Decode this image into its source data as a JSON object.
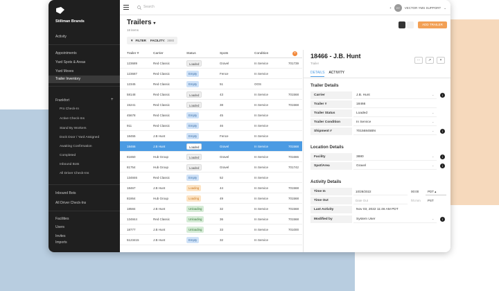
{
  "sidebar": {
    "brand": "Stillman Brands",
    "items": [
      {
        "label": "Activity",
        "top": 0
      },
      {
        "label": "Appointments"
      },
      {
        "label": "Yard Spots & Areas"
      },
      {
        "label": "Yard Moves"
      },
      {
        "label": "Trailer Inventory"
      }
    ],
    "section": "Frankfort",
    "subitems": [
      "Pro Check-In",
      "Active Check-Ins",
      "Stand By Workers",
      "Dock Door / Yard Assigned",
      "Awaiting Confirmation",
      "Completed",
      "Inbound Bots",
      "All Driver Check-Ins"
    ],
    "bottom": [
      "Inbound Bots",
      "All Driver Check-Ins",
      "Facilities",
      "Users",
      "Invites",
      "Imports"
    ]
  },
  "topbar": {
    "search_placeholder": "Search",
    "avatar": "VY",
    "user": "VECTOR YMS SUPPORT"
  },
  "page": {
    "title": "Trailers",
    "subtitle": "18 items",
    "filter_label": "FILTER",
    "facility_label": "FACILITY:",
    "facility_value": "3880",
    "add_button": "ADD TRAILER"
  },
  "table": {
    "headers": [
      "Trailer #",
      "Carrier",
      "Status",
      "Spots",
      "Condition"
    ],
    "rows": [
      {
        "trailer": "123689",
        "carrier": "Red Classic",
        "status": "Loaded",
        "spot": "Gravel",
        "condition": "In Service",
        "extra": "701739"
      },
      {
        "trailer": "123687",
        "carrier": "Red Classic",
        "status": "Empty",
        "spot": "Fence",
        "condition": "In Service",
        "extra": ""
      },
      {
        "trailer": "12345",
        "carrier": "Red Classic",
        "status": "Empty",
        "spot": "51",
        "condition": "OOS",
        "extra": ""
      },
      {
        "trailer": "58148",
        "carrier": "Red Classic",
        "status": "Loaded",
        "spot": "43",
        "condition": "In Service",
        "extra": "701568"
      },
      {
        "trailer": "15241",
        "carrier": "Red Classic",
        "status": "Loaded",
        "spot": "38",
        "condition": "In Service",
        "extra": "701568"
      },
      {
        "trailer": "45678",
        "carrier": "Red Classic",
        "status": "Empty",
        "spot": "45",
        "condition": "In Service",
        "extra": ""
      },
      {
        "trailer": "911",
        "carrier": "Red Classic",
        "status": "Empty",
        "spot": "46",
        "condition": "In Service",
        "extra": ""
      },
      {
        "trailer": "18455",
        "carrier": "J.B Hunt",
        "status": "Empty",
        "spot": "Fence",
        "condition": "In Service",
        "extra": ""
      },
      {
        "trailer": "18466",
        "carrier": "J.B Hunt",
        "status": "Loaded",
        "spot": "Gravel",
        "condition": "In Service",
        "extra": "701568",
        "selected": true
      },
      {
        "trailer": "81650",
        "carrier": "Hub Group",
        "status": "Loaded",
        "spot": "Gravel",
        "condition": "In Service",
        "extra": "701666"
      },
      {
        "trailer": "81754",
        "carrier": "Hub Group",
        "status": "Loaded",
        "spot": "Gravel",
        "condition": "In Service",
        "extra": "701742"
      },
      {
        "trailer": "134846",
        "carrier": "Red Classic",
        "status": "Empty",
        "spot": "52",
        "condition": "In Service",
        "extra": ""
      },
      {
        "trailer": "18467",
        "carrier": "J.B Hunt",
        "status": "Loading",
        "spot": "44",
        "condition": "In Service",
        "extra": "701568"
      },
      {
        "trailer": "81864",
        "carrier": "Hub Group",
        "status": "Loading",
        "spot": "49",
        "condition": "In Service",
        "extra": "701568"
      },
      {
        "trailer": "18584",
        "carrier": "J.B Hunt",
        "status": "Unloading",
        "spot": "32",
        "condition": "In Service",
        "extra": "701568"
      },
      {
        "trailer": "134844",
        "carrier": "Red Classic",
        "status": "Unloading",
        "spot": "36",
        "condition": "In Service",
        "extra": "701568"
      },
      {
        "trailer": "18777",
        "carrier": "J.B Hunt",
        "status": "Unloading",
        "spot": "33",
        "condition": "In Service",
        "extra": "701000"
      },
      {
        "trailer": "5123415",
        "carrier": "J.B Hunt",
        "status": "Empty",
        "spot": "32",
        "condition": "In Service",
        "extra": ""
      }
    ]
  },
  "detail": {
    "title": "18466 - J.B. Hunt",
    "subtitle": "Trailer",
    "tabs": [
      "DETAILS",
      "ACTIVITY"
    ],
    "trailer_section": "Trailer Details",
    "fields": [
      {
        "label": "Carrier",
        "value": "J.B. Hunt"
      },
      {
        "label": "Trailer #",
        "value": "18466"
      },
      {
        "label": "Trailer Status",
        "value": "Loaded"
      },
      {
        "label": "Trailer Condition",
        "value": "In Service"
      },
      {
        "label": "Shipment #",
        "value": "70156845BN"
      }
    ],
    "location_section": "Location Details",
    "location_fields": [
      {
        "label": "Facility",
        "value": "3880"
      },
      {
        "label": "Spot/Area",
        "value": "Gravel"
      }
    ],
    "activity_section": "Activity Details",
    "time_in_label": "Time In",
    "time_in_date": "10/28/2022",
    "time_in_time": "00:00",
    "time_in_tz": "PDT",
    "time_out_label": "Time Out",
    "time_out_date_ph": "Date Out",
    "time_out_time_ph": "hh:mm",
    "time_out_tz": "PST",
    "last_activity_label": "Last Activity",
    "last_activity_value": "Nov 03, 2022 11:46 AM PDT",
    "modified_label": "Modified by",
    "modified_value": "System User"
  },
  "colors": {
    "accent": "#4b9be3",
    "add_button": "#f2a055",
    "sidebar": "#1f1f1f"
  }
}
